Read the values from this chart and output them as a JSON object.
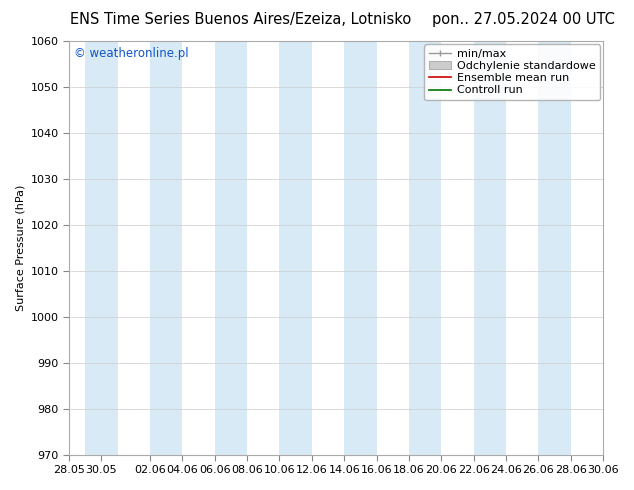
{
  "title_left": "ENS Time Series Buenos Aires/Ezeiza, Lotnisko",
  "title_right": "pon.. 27.05.2024 00 UTC",
  "ylabel": "Surface Pressure (hPa)",
  "watermark": "© weatheronline.pl",
  "ylim": [
    970,
    1060
  ],
  "yticks": [
    970,
    980,
    990,
    1000,
    1010,
    1020,
    1030,
    1040,
    1050,
    1060
  ],
  "xtick_labels": [
    "28.05",
    "30.05",
    "02.06",
    "04.06",
    "06.06",
    "08.06",
    "10.06",
    "12.06",
    "14.06",
    "16.06",
    "18.06",
    "20.06",
    "22.06",
    "24.06",
    "26.06",
    "28.06",
    "30.06"
  ],
  "n_days": 33,
  "legend_labels": [
    "min/max",
    "Odchylenie standardowe",
    "Ensemble mean run",
    "Controll run"
  ],
  "fig_bg_color": "#ffffff",
  "plot_bg_color": "#ffffff",
  "band_color": "#d8eaf5",
  "band_alpha": 1.0,
  "title_fontsize": 10.5,
  "ylabel_fontsize": 8,
  "tick_fontsize": 8,
  "watermark_fontsize": 8.5,
  "legend_fontsize": 8
}
